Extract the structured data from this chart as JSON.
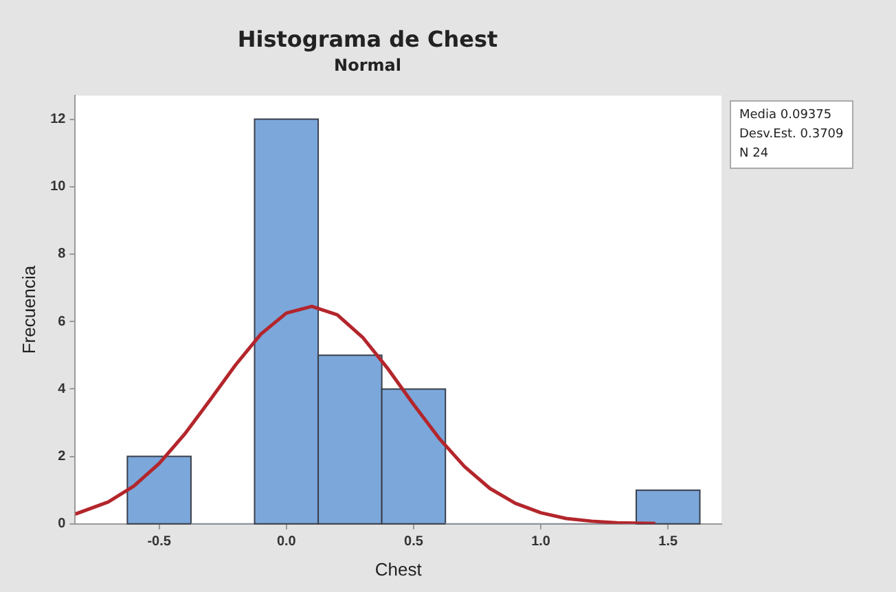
{
  "chart_data": {
    "type": "histogram",
    "title": "Histograma de Chest",
    "subtitle": "Normal",
    "xlabel": "Chest",
    "ylabel": "Frecuencia",
    "bins": [
      -0.625,
      -0.375,
      -0.125,
      0.125,
      0.375,
      0.625,
      0.875,
      1.125,
      1.375,
      1.625
    ],
    "values": [
      2,
      0,
      12,
      5,
      4,
      0,
      0,
      0,
      1
    ],
    "color": "#7ba7db",
    "series": [
      {
        "type": "line",
        "color": "#b3262c",
        "x": [
          -0.83,
          -0.7,
          -0.6,
          -0.5,
          -0.4,
          -0.3,
          -0.2,
          -0.1,
          0,
          0.1,
          0.2,
          0.3,
          0.4,
          0.5,
          0.6,
          0.7,
          0.8,
          0.9,
          1.0,
          1.1,
          1.2,
          1.3,
          1.45
        ],
        "values": [
          0.29,
          0.65,
          1.12,
          1.79,
          2.66,
          3.67,
          4.71,
          5.63,
          6.25,
          6.45,
          6.2,
          5.53,
          4.59,
          3.54,
          2.54,
          1.7,
          1.05,
          0.61,
          0.33,
          0.16,
          0.08,
          0.03,
          0.01
        ]
      }
    ],
    "xlim": [
      -0.83,
      1.71
    ],
    "ylim": [
      0,
      12.7
    ],
    "xticks": [
      -0.5,
      {
        "value": 0,
        "label": "0.0"
      },
      0.5,
      {
        "value": 1,
        "label": "1.0"
      },
      1.5
    ],
    "yticks": [
      0,
      2,
      4,
      6,
      8,
      10,
      12
    ],
    "grid": false,
    "legend": false,
    "line_style": "solid",
    "marker": "none",
    "annotations": [
      "Media 0.09375",
      "Desv.Est. 0.3709",
      "N 24"
    ]
  }
}
